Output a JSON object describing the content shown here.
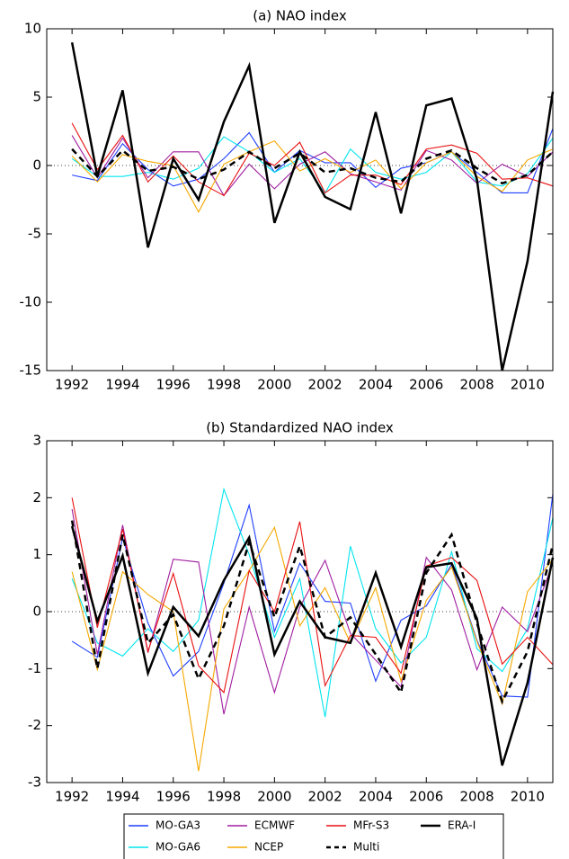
{
  "chart_data": [
    {
      "type": "line",
      "title": "(a) NAO index",
      "x": [
        1992,
        1993,
        1994,
        1995,
        1996,
        1997,
        1998,
        1999,
        2000,
        2001,
        2002,
        2003,
        2004,
        2005,
        2006,
        2007,
        2008,
        2009,
        2010,
        2011
      ],
      "xlim": [
        1991,
        2011
      ],
      "xticks": [
        1992,
        1994,
        1996,
        1998,
        2000,
        2002,
        2004,
        2006,
        2008,
        2010
      ],
      "ylim": [
        -15,
        10
      ],
      "yticks": [
        -15,
        -10,
        -5,
        0,
        5,
        10
      ],
      "zero_line": true,
      "series": [
        {
          "name": "MO-GA3",
          "color": "#1f3fff",
          "values": [
            -0.7,
            -1.1,
            1.6,
            -0.3,
            -1.5,
            -1.0,
            0.5,
            2.4,
            -0.5,
            1.1,
            0.2,
            0.2,
            -1.6,
            -0.2,
            0.2,
            1.0,
            -0.5,
            -2.0,
            -2.0,
            2.7
          ]
        },
        {
          "name": "MO-GA6",
          "color": "#00e5ee",
          "values": [
            0.5,
            -0.8,
            -0.8,
            -0.5,
            -1.0,
            -0.2,
            2.1,
            1.0,
            -0.5,
            0.5,
            -2.0,
            1.2,
            -0.5,
            -1.0,
            -0.5,
            1.0,
            -1.2,
            -1.5,
            -0.6,
            2.0
          ]
        },
        {
          "name": "ECMWF",
          "color": "#a01ea0",
          "values": [
            2.2,
            -0.9,
            2.0,
            -0.9,
            1.0,
            1.0,
            -2.2,
            0.1,
            -1.7,
            0.1,
            1.0,
            -0.6,
            -1.2,
            -1.8,
            1.1,
            0.4,
            -1.3,
            0.1,
            -0.8,
            1.0
          ]
        },
        {
          "name": "NCEP",
          "color": "#f5a800",
          "values": [
            0.7,
            -1.2,
            0.8,
            0.3,
            0.0,
            -3.4,
            0.1,
            1.0,
            1.8,
            -0.4,
            0.5,
            -0.5,
            0.4,
            -1.7,
            0.2,
            1.0,
            -0.8,
            -1.9,
            0.4,
            1.2
          ]
        },
        {
          "name": "MFr-S3",
          "color": "#e81010",
          "values": [
            3.1,
            -0.3,
            2.2,
            -1.2,
            0.7,
            -1.2,
            -2.2,
            0.9,
            0.0,
            1.7,
            -2.0,
            -0.7,
            -0.7,
            -1.4,
            1.2,
            1.5,
            0.9,
            -1.0,
            -0.9,
            -1.5
          ]
        },
        {
          "name": "Multi",
          "color": "#000000",
          "linestyle": "dashed",
          "linewidth": 2.5,
          "values": [
            1.2,
            -0.8,
            1.1,
            -0.4,
            -0.1,
            -1.0,
            -0.3,
            1.0,
            -0.2,
            0.9,
            -0.5,
            -0.2,
            -0.9,
            -1.2,
            0.5,
            1.1,
            -0.2,
            -1.3,
            -0.7,
            1.0
          ]
        },
        {
          "name": "ERA-I",
          "color": "#000000",
          "linewidth": 2.5,
          "values": [
            9,
            -0.8,
            5.5,
            -6,
            0.5,
            -2.5,
            3.2,
            7.3,
            -4.2,
            1,
            -2.3,
            -3.2,
            3.9,
            -3.5,
            4.4,
            4.9,
            -1,
            -15,
            -7,
            5.4
          ]
        }
      ]
    },
    {
      "type": "line",
      "title": "(b) Standardized NAO index",
      "x": [
        1992,
        1993,
        1994,
        1995,
        1996,
        1997,
        1998,
        1999,
        2000,
        2001,
        2002,
        2003,
        2004,
        2005,
        2006,
        2007,
        2008,
        2009,
        2010,
        2011
      ],
      "xlim": [
        1991,
        2011
      ],
      "xticks": [
        1992,
        1994,
        1996,
        1998,
        2000,
        2002,
        2004,
        2006,
        2008,
        2010
      ],
      "ylim": [
        -3,
        3
      ],
      "yticks": [
        -3,
        -2,
        -1,
        0,
        1,
        2,
        3
      ],
      "zero_line": true,
      "series": [
        {
          "color": "#1f3fff",
          "values": [
            -0.52,
            -0.8,
            1.3,
            -0.2,
            -1.13,
            -0.7,
            0.5,
            1.87,
            -0.35,
            0.85,
            0.18,
            0.15,
            -1.22,
            -0.15,
            0.1,
            0.83,
            -0.5,
            -1.48,
            -1.5,
            2.07
          ]
        },
        {
          "color": "#00e5ee",
          "values": [
            0.58,
            -0.55,
            -0.78,
            -0.3,
            -0.7,
            -0.15,
            2.15,
            1.0,
            -0.45,
            0.58,
            -1.85,
            1.15,
            -0.3,
            -0.9,
            -0.45,
            1.05,
            -0.65,
            -1.05,
            -0.3,
            1.65
          ]
        },
        {
          "color": "#a01ea0",
          "values": [
            1.8,
            -0.75,
            1.52,
            -0.72,
            0.92,
            0.87,
            -1.8,
            0.08,
            -1.42,
            0.08,
            0.9,
            -0.38,
            -0.85,
            -1.32,
            0.95,
            0.38,
            -1.02,
            0.08,
            -0.35,
            0.85
          ]
        },
        {
          "color": "#f5a800",
          "values": [
            0.7,
            -1.02,
            0.7,
            0.3,
            0.0,
            -2.8,
            0.05,
            0.72,
            1.48,
            -0.25,
            0.42,
            -0.55,
            0.42,
            -1.22,
            0.2,
            0.78,
            -0.52,
            -1.62,
            0.35,
            0.92
          ]
        },
        {
          "color": "#e81010",
          "values": [
            2.0,
            -0.28,
            1.45,
            -0.7,
            0.67,
            -0.95,
            -1.42,
            0.72,
            0.0,
            1.58,
            -1.3,
            -0.42,
            -0.45,
            -1.08,
            0.8,
            0.95,
            0.55,
            -0.92,
            -0.45,
            -0.93
          ]
        },
        {
          "color": "#000000",
          "linestyle": "dashed",
          "linewidth": 2.5,
          "values": [
            1.6,
            -1.0,
            1.35,
            -0.55,
            -0.05,
            -1.18,
            -0.25,
            1.22,
            -0.1,
            1.15,
            -0.45,
            -0.1,
            -0.75,
            -1.42,
            0.68,
            1.35,
            -0.2,
            -1.58,
            -0.7,
            1.18
          ]
        },
        {
          "color": "#000000",
          "linewidth": 2.5,
          "values": [
            1.5,
            -0.17,
            0.98,
            -1.08,
            0.08,
            -0.43,
            0.55,
            1.3,
            -0.75,
            0.18,
            -0.45,
            -0.55,
            0.68,
            -0.62,
            0.78,
            0.85,
            -0.12,
            -2.7,
            -1.25,
            0.95
          ]
        }
      ]
    }
  ]
}
